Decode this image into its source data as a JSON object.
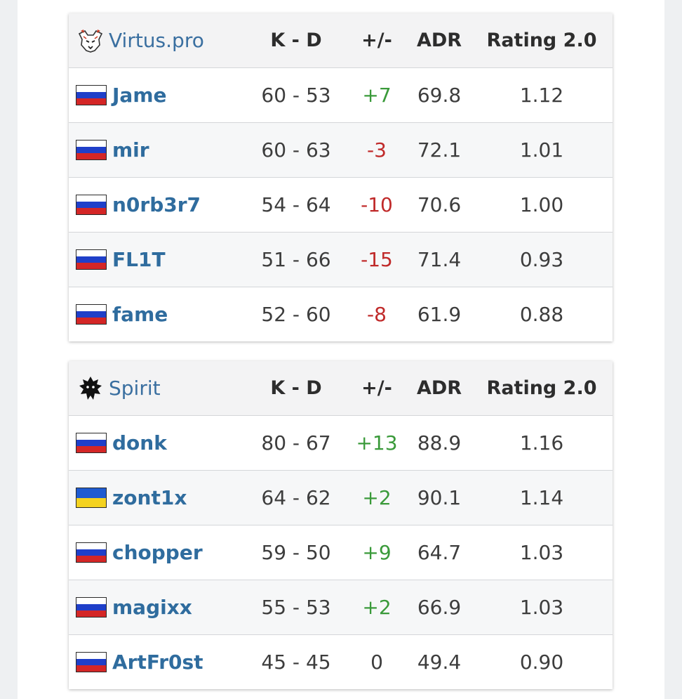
{
  "colors": {
    "positive": "#3a9a3a",
    "negative": "#c02a2a",
    "link": "#2f6c9e",
    "flag_ru": [
      "#ffffff",
      "#1f3fc9",
      "#d42626"
    ],
    "flag_ua": [
      "#1f5bd0",
      "#f4d21f"
    ]
  },
  "headers": {
    "kd": "K - D",
    "pm": "+/-",
    "adr": "ADR",
    "rating": "Rating 2.0"
  },
  "teams": [
    {
      "name": "Virtus.pro",
      "logo_icon": "virtus-pro-bear-icon",
      "players": [
        {
          "flag": "russia-flag-icon",
          "name": "Jame",
          "kd": "60 - 53",
          "pm": "+7",
          "pm_sign": "pos",
          "adr": "69.8",
          "rating": "1.12"
        },
        {
          "flag": "russia-flag-icon",
          "name": "mir",
          "kd": "60 - 63",
          "pm": "-3",
          "pm_sign": "neg",
          "adr": "72.1",
          "rating": "1.01"
        },
        {
          "flag": "russia-flag-icon",
          "name": "n0rb3r7",
          "kd": "54 - 64",
          "pm": "-10",
          "pm_sign": "neg",
          "adr": "70.6",
          "rating": "1.00"
        },
        {
          "flag": "russia-flag-icon",
          "name": "FL1T",
          "kd": "51 - 66",
          "pm": "-15",
          "pm_sign": "neg",
          "adr": "71.4",
          "rating": "0.93"
        },
        {
          "flag": "russia-flag-icon",
          "name": "fame",
          "kd": "52 - 60",
          "pm": "-8",
          "pm_sign": "neg",
          "adr": "61.9",
          "rating": "0.88"
        }
      ]
    },
    {
      "name": "Spirit",
      "logo_icon": "spirit-dragon-icon",
      "players": [
        {
          "flag": "russia-flag-icon",
          "name": "donk",
          "kd": "80 - 67",
          "pm": "+13",
          "pm_sign": "pos",
          "adr": "88.9",
          "rating": "1.16"
        },
        {
          "flag": "ukraine-flag-icon",
          "name": "zont1x",
          "kd": "64 - 62",
          "pm": "+2",
          "pm_sign": "pos",
          "adr": "90.1",
          "rating": "1.14"
        },
        {
          "flag": "russia-flag-icon",
          "name": "chopper",
          "kd": "59 - 50",
          "pm": "+9",
          "pm_sign": "pos",
          "adr": "64.7",
          "rating": "1.03"
        },
        {
          "flag": "russia-flag-icon",
          "name": "magixx",
          "kd": "55 - 53",
          "pm": "+2",
          "pm_sign": "pos",
          "adr": "66.9",
          "rating": "1.03"
        },
        {
          "flag": "russia-flag-icon",
          "name": "ArtFr0st",
          "kd": "45 - 45",
          "pm": "0",
          "pm_sign": "zero",
          "adr": "49.4",
          "rating": "0.90"
        }
      ]
    }
  ]
}
